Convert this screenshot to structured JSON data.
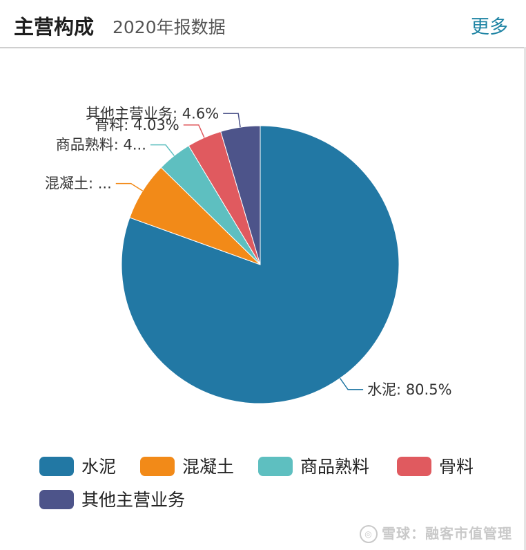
{
  "header": {
    "title": "主营构成",
    "subtitle": "2020年报数据",
    "more_label": "更多"
  },
  "chart_data": {
    "type": "pie",
    "slices": [
      {
        "name": "水泥",
        "value": 80.5,
        "label": "水泥: 80.5%",
        "color": "#2278a4"
      },
      {
        "name": "混凝土",
        "value": 6.83,
        "label": "混凝土: ...",
        "color": "#f28a18"
      },
      {
        "name": "商品熟料",
        "value": 4.04,
        "label": "商品熟料: 4...",
        "color": "#5ebfc0"
      },
      {
        "name": "骨料",
        "value": 4.03,
        "label": "骨料: 4.03%",
        "color": "#e05a5f"
      },
      {
        "name": "其他主营业务",
        "value": 4.6,
        "label": "其他主营业务: 4.6%",
        "color": "#4d548a"
      }
    ],
    "legend": [
      "水泥",
      "混凝土",
      "商品熟料",
      "骨料",
      "其他主营业务"
    ],
    "legend_placement": "bottom"
  },
  "watermark": {
    "text": "雪球：融客市值管理",
    "icon": "snowball-logo-icon"
  }
}
